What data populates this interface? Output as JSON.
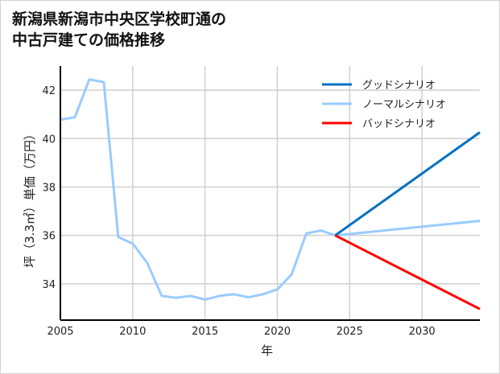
{
  "title_line1": "新潟県新潟市中央区学校町通の",
  "title_line2": "中古戸建ての価格推移",
  "chart_data": {
    "type": "line",
    "title": "新潟県新潟市中央区学校町通の中古戸建ての価格推移",
    "xlabel": "年",
    "ylabel": "坪（3.3㎡）単価（万円）",
    "xlim": [
      2005,
      2034
    ],
    "ylim": [
      32.5,
      43
    ],
    "xticks": [
      2005,
      2010,
      2015,
      2020,
      2025,
      2030
    ],
    "yticks": [
      34,
      36,
      38,
      40,
      42
    ],
    "grid": true,
    "legend_position": "upper right",
    "series": [
      {
        "name": "グッドシナリオ",
        "color": "#0070c0",
        "x": [
          2024,
          2034
        ],
        "values": [
          36.0,
          40.26
        ]
      },
      {
        "name": "ノーマルシナリオ",
        "color": "#99ccff",
        "x": [
          2005,
          2006,
          2007,
          2008,
          2009,
          2010,
          2011,
          2012,
          2013,
          2014,
          2015,
          2016,
          2017,
          2018,
          2019,
          2020,
          2021,
          2022,
          2023,
          2024,
          2034
        ],
        "values": [
          40.78,
          40.88,
          42.45,
          42.33,
          35.93,
          35.66,
          34.87,
          33.5,
          33.42,
          33.5,
          33.35,
          33.5,
          33.57,
          33.44,
          33.57,
          33.77,
          34.4,
          36.08,
          36.2,
          36.0,
          36.6
        ]
      },
      {
        "name": "バッドシナリオ",
        "color": "#ff0000",
        "x": [
          2024,
          2034
        ],
        "values": [
          36.0,
          32.96
        ]
      }
    ]
  }
}
